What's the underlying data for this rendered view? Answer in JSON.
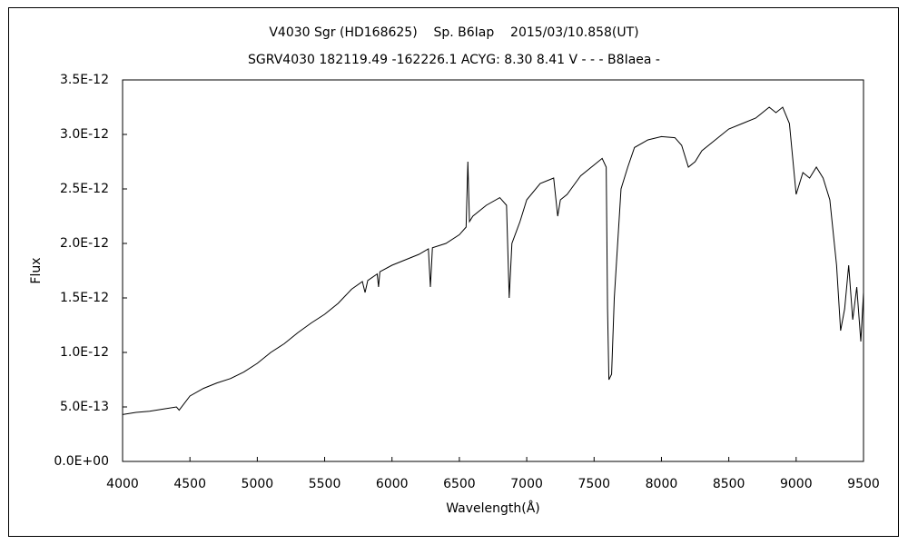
{
  "chart_data": {
    "type": "line",
    "title": "V4030 Sgr (HD168625)    Sp. B6Iap    2015/03/10.858(UT)",
    "subtitle": "SGRV4030 182119.49 -162226.1 ACYG: 8.30 8.41 V - - - B8Iaea -",
    "x_label": "Wavelength(Å)",
    "y_label": "Flux",
    "xlim": [
      4000,
      9500
    ],
    "xticks": [
      4000,
      4500,
      5000,
      5500,
      6000,
      6500,
      7000,
      7500,
      8000,
      8500,
      9000,
      9500
    ],
    "ylim": [
      0,
      3.5e-12
    ],
    "yticks": [
      {
        "value": 0,
        "label": "0.0E+00"
      },
      {
        "value": 5e-13,
        "label": "5.0E-13"
      },
      {
        "value": 1e-12,
        "label": "1.0E-12"
      },
      {
        "value": 1.5e-12,
        "label": "1.5E-12"
      },
      {
        "value": 2e-12,
        "label": "2.0E-12"
      },
      {
        "value": 2.5e-12,
        "label": "2.5E-12"
      },
      {
        "value": 3e-12,
        "label": "3.0E-12"
      },
      {
        "value": 3.5e-12,
        "label": "3.5E-12"
      }
    ],
    "grid": false,
    "color": "#000000",
    "x": [
      4000,
      4100,
      4200,
      4300,
      4400,
      4420,
      4500,
      4600,
      4700,
      4800,
      4900,
      5000,
      5100,
      5200,
      5300,
      5400,
      5500,
      5600,
      5700,
      5780,
      5800,
      5820,
      5890,
      5900,
      5910,
      6000,
      6100,
      6200,
      6270,
      6285,
      6300,
      6400,
      6500,
      6550,
      6563,
      6575,
      6600,
      6700,
      6800,
      6850,
      6870,
      6890,
      6950,
      7000,
      7100,
      7200,
      7230,
      7250,
      7300,
      7400,
      7500,
      7560,
      7590,
      7600,
      7610,
      7630,
      7650,
      7700,
      7750,
      7800,
      7900,
      8000,
      8100,
      8150,
      8200,
      8250,
      8300,
      8400,
      8500,
      8600,
      8700,
      8800,
      8850,
      8900,
      8950,
      9000,
      9050,
      9100,
      9150,
      9200,
      9250,
      9300,
      9330,
      9360,
      9390,
      9420,
      9450,
      9480,
      9500
    ],
    "values": [
      4.3e-13,
      4.5e-13,
      4.6e-13,
      4.8e-13,
      5e-13,
      4.7e-13,
      6e-13,
      6.7e-13,
      7.2e-13,
      7.6e-13,
      8.2e-13,
      9e-13,
      1e-12,
      1.08e-12,
      1.18e-12,
      1.27e-12,
      1.35e-12,
      1.45e-12,
      1.58e-12,
      1.65e-12,
      1.55e-12,
      1.66e-12,
      1.72e-12,
      1.6e-12,
      1.74e-12,
      1.8e-12,
      1.85e-12,
      1.9e-12,
      1.95e-12,
      1.6e-12,
      1.96e-12,
      2e-12,
      2.08e-12,
      2.15e-12,
      2.75e-12,
      2.2e-12,
      2.25e-12,
      2.35e-12,
      2.42e-12,
      2.35e-12,
      1.5e-12,
      2e-12,
      2.2e-12,
      2.4e-12,
      2.55e-12,
      2.6e-12,
      2.25e-12,
      2.4e-12,
      2.45e-12,
      2.62e-12,
      2.72e-12,
      2.78e-12,
      2.7e-12,
      1.4e-12,
      7.5e-13,
      8e-13,
      1.5e-12,
      2.5e-12,
      2.7e-12,
      2.88e-12,
      2.95e-12,
      2.98e-12,
      2.97e-12,
      2.9e-12,
      2.7e-12,
      2.75e-12,
      2.85e-12,
      2.95e-12,
      3.05e-12,
      3.1e-12,
      3.15e-12,
      3.25e-12,
      3.2e-12,
      3.25e-12,
      3.1e-12,
      2.45e-12,
      2.65e-12,
      2.6e-12,
      2.7e-12,
      2.6e-12,
      2.4e-12,
      1.8e-12,
      1.2e-12,
      1.4e-12,
      1.8e-12,
      1.3e-12,
      1.6e-12,
      1.1e-12,
      1.55e-12
    ]
  }
}
